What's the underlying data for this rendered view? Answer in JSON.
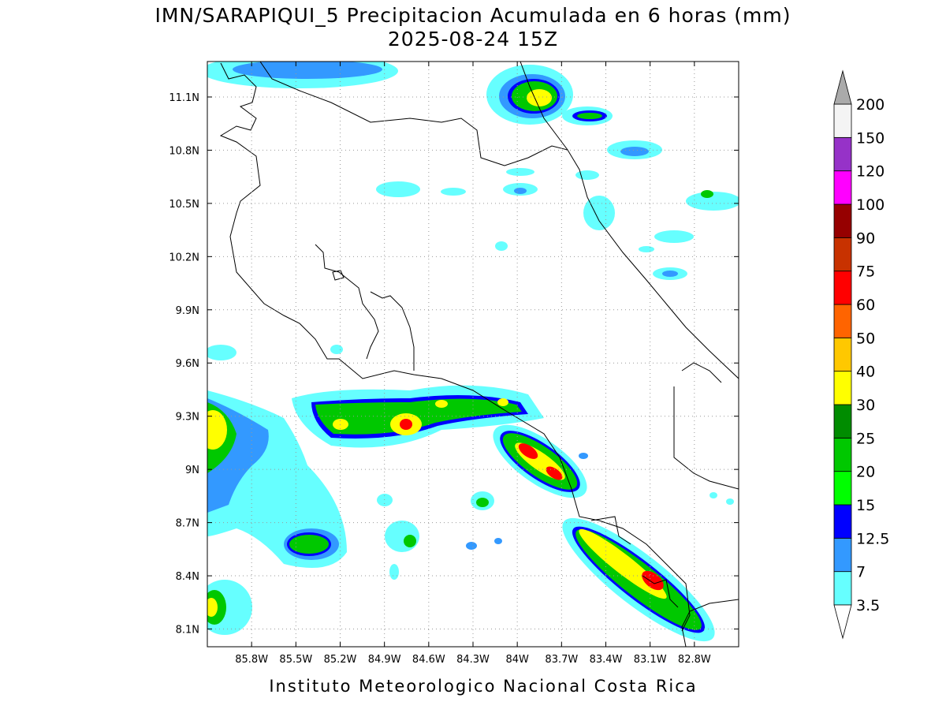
{
  "map": {
    "title": "IMN/SARAPIQUI_5 Precipitacion Acumulada en 6 horas (mm)",
    "subtitle": "2025-08-24 15Z",
    "footer": "Instituto Meteorologico Nacional Costa Rica",
    "xlim": [
      -86.1,
      -82.5
    ],
    "ylim": [
      8.0,
      11.3
    ],
    "xticks": [
      {
        "value": -85.8,
        "label": "85.8W"
      },
      {
        "value": -85.5,
        "label": "85.5W"
      },
      {
        "value": -85.2,
        "label": "85.2W"
      },
      {
        "value": -84.9,
        "label": "84.9W"
      },
      {
        "value": -84.6,
        "label": "84.6W"
      },
      {
        "value": -84.3,
        "label": "84.3W"
      },
      {
        "value": -84.0,
        "label": "84W"
      },
      {
        "value": -83.7,
        "label": "83.7W"
      },
      {
        "value": -83.4,
        "label": "83.4W"
      },
      {
        "value": -83.1,
        "label": "83.1W"
      },
      {
        "value": -82.8,
        "label": "82.8W"
      }
    ],
    "yticks": [
      {
        "value": 8.1,
        "label": "8.1N"
      },
      {
        "value": 8.4,
        "label": "8.4N"
      },
      {
        "value": 8.7,
        "label": "8.7N"
      },
      {
        "value": 9.0,
        "label": "9N"
      },
      {
        "value": 9.3,
        "label": "9.3N"
      },
      {
        "value": 9.6,
        "label": "9.6N"
      },
      {
        "value": 9.9,
        "label": "9.9N"
      },
      {
        "value": 10.2,
        "label": "10.2N"
      },
      {
        "value": 10.5,
        "label": "10.5N"
      },
      {
        "value": 10.8,
        "label": "10.8N"
      },
      {
        "value": 11.1,
        "label": "11.1N"
      }
    ],
    "grid": true,
    "colorbar": {
      "levels": [
        3.5,
        7,
        12.5,
        15,
        20,
        25,
        30,
        40,
        50,
        60,
        75,
        90,
        100,
        120,
        150,
        200
      ],
      "colors": [
        "#66ffff",
        "#3399ff",
        "#0000ff",
        "#00ff00",
        "#00c800",
        "#008c00",
        "#ffff00",
        "#ffc800",
        "#ff6400",
        "#ff0000",
        "#c83200",
        "#960000",
        "#ff00ff",
        "#9632c8",
        "#f4f4f4"
      ],
      "over_color": "#aaaaaa",
      "under_color": "#ffffff"
    }
  }
}
